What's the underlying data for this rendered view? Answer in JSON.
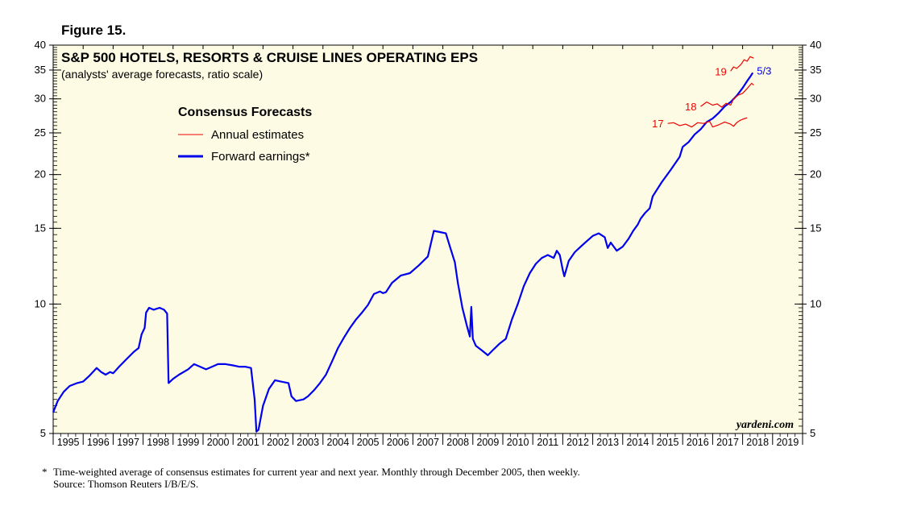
{
  "figure_label": "Figure 15.",
  "footnote": {
    "marker": "*",
    "line1": "Time-weighted average of consensus estimates for current year and next year. Monthly through December 2005, then weekly.",
    "line2": "Source: Thomson Reuters I/B/E/S."
  },
  "watermark": "yardeni.com",
  "colors": {
    "background": "#fdfbe3",
    "forward": "#0000ee",
    "annual": "#ee0000",
    "axis": "#000000"
  },
  "chart_data": {
    "type": "line",
    "title": "S&P 500 HOTELS, RESORTS & CRUISE LINES OPERATING EPS",
    "subtitle": "(analysts' average forecasts, ratio scale)",
    "legend": {
      "title": "Consensus Forecasts",
      "items": [
        {
          "label": "Annual estimates",
          "series": "annual"
        },
        {
          "label": "Forward earnings*",
          "series": "forward"
        }
      ]
    },
    "y_scale": "log",
    "ylim": [
      5,
      40
    ],
    "y_ticks": [
      5,
      10,
      15,
      20,
      25,
      30,
      35,
      40
    ],
    "xlim": [
      1995,
      2020
    ],
    "x_ticks": [
      "1995",
      "1996",
      "1997",
      "1998",
      "1999",
      "2000",
      "2001",
      "2002",
      "2003",
      "2004",
      "2005",
      "2006",
      "2007",
      "2008",
      "2009",
      "2010",
      "2011",
      "2012",
      "2013",
      "2014",
      "2015",
      "2016",
      "2017",
      "2018",
      "2019"
    ],
    "last_value_label": "5/3",
    "series": [
      {
        "name": "Forward earnings",
        "id": "forward",
        "x": [
          1995.0,
          1995.15,
          1995.35,
          1995.55,
          1995.8,
          1996.0,
          1996.2,
          1996.45,
          1996.6,
          1996.75,
          1996.9,
          1997.0,
          1997.2,
          1997.45,
          1997.7,
          1997.85,
          1997.95,
          1998.05,
          1998.1,
          1998.2,
          1998.35,
          1998.55,
          1998.7,
          1998.8,
          1998.85,
          1999.0,
          1999.2,
          1999.5,
          1999.7,
          1999.9,
          2000.1,
          2000.3,
          2000.5,
          2000.75,
          2001.0,
          2001.2,
          2001.4,
          2001.6,
          2001.72,
          2001.78,
          2001.85,
          2002.0,
          2002.2,
          2002.4,
          2002.6,
          2002.85,
          2002.95,
          2003.1,
          2003.35,
          2003.5,
          2003.7,
          2003.9,
          2004.1,
          2004.3,
          2004.5,
          2004.7,
          2004.9,
          2005.1,
          2005.3,
          2005.5,
          2005.7,
          2005.9,
          2006.0,
          2006.1,
          2006.3,
          2006.6,
          2006.9,
          2007.2,
          2007.35,
          2007.5,
          2007.7,
          2007.9,
          2008.1,
          2008.25,
          2008.4,
          2008.5,
          2008.65,
          2008.8,
          2008.9,
          2008.95,
          2009.0,
          2009.1,
          2009.3,
          2009.5,
          2009.7,
          2009.9,
          2010.1,
          2010.3,
          2010.5,
          2010.7,
          2010.9,
          2011.1,
          2011.3,
          2011.5,
          2011.7,
          2011.8,
          2011.9,
          2012.0,
          2012.05,
          2012.2,
          2012.4,
          2012.6,
          2012.8,
          2013.0,
          2013.2,
          2013.4,
          2013.5,
          2013.6,
          2013.8,
          2014.0,
          2014.2,
          2014.35,
          2014.5,
          2014.6,
          2014.75,
          2014.9,
          2015.0,
          2015.3,
          2015.6,
          2015.9,
          2016.0,
          2016.2,
          2016.4,
          2016.6,
          2016.8,
          2017.0,
          2017.2,
          2017.4,
          2017.6,
          2017.8,
          2018.0,
          2018.15,
          2018.28,
          2018.34
        ],
        "values": [
          5.6,
          5.95,
          6.25,
          6.45,
          6.55,
          6.6,
          6.8,
          7.1,
          6.95,
          6.85,
          6.95,
          6.9,
          7.15,
          7.45,
          7.75,
          7.9,
          8.5,
          8.8,
          9.55,
          9.8,
          9.7,
          9.8,
          9.7,
          9.5,
          6.55,
          6.7,
          6.85,
          7.05,
          7.25,
          7.15,
          7.05,
          7.15,
          7.25,
          7.25,
          7.2,
          7.15,
          7.15,
          7.1,
          6.0,
          5.05,
          5.1,
          5.8,
          6.35,
          6.65,
          6.6,
          6.55,
          6.1,
          5.95,
          6.0,
          6.1,
          6.3,
          6.55,
          6.85,
          7.35,
          7.9,
          8.35,
          8.8,
          9.2,
          9.55,
          9.95,
          10.55,
          10.7,
          10.6,
          10.65,
          11.2,
          11.65,
          11.8,
          12.3,
          12.6,
          12.9,
          14.8,
          14.7,
          14.6,
          13.5,
          12.5,
          11.2,
          9.8,
          8.9,
          8.4,
          9.85,
          8.3,
          8.0,
          7.8,
          7.6,
          7.85,
          8.1,
          8.3,
          9.2,
          10.0,
          11.0,
          11.8,
          12.4,
          12.8,
          13.0,
          12.8,
          13.3,
          13.0,
          12.0,
          11.6,
          12.6,
          13.2,
          13.6,
          14.0,
          14.4,
          14.6,
          14.3,
          13.5,
          13.9,
          13.3,
          13.6,
          14.2,
          14.8,
          15.3,
          15.8,
          16.3,
          16.7,
          17.8,
          19.2,
          20.5,
          22.0,
          23.2,
          23.8,
          24.8,
          25.5,
          26.5,
          27.0,
          27.8,
          28.8,
          29.5,
          30.5,
          31.8,
          33.0,
          34.0,
          34.5
        ]
      },
      {
        "name": "2017 annual estimate",
        "id": "annual17",
        "label": "17",
        "x": [
          2015.5,
          2015.7,
          2015.9,
          2016.1,
          2016.3,
          2016.5,
          2016.7,
          2016.9,
          2017.0,
          2017.2,
          2017.4,
          2017.6,
          2017.7,
          2017.8,
          2017.9,
          2018.0,
          2018.15
        ],
        "values": [
          26.3,
          26.4,
          26.0,
          26.2,
          25.8,
          26.4,
          26.3,
          26.6,
          25.8,
          26.1,
          26.5,
          26.2,
          25.9,
          26.4,
          26.7,
          26.9,
          27.1
        ]
      },
      {
        "name": "2018 annual estimate",
        "id": "annual18",
        "label": "18",
        "x": [
          2016.6,
          2016.8,
          2017.0,
          2017.15,
          2017.3,
          2017.45,
          2017.6,
          2017.7,
          2017.85,
          2018.0,
          2018.15,
          2018.3,
          2018.37
        ],
        "values": [
          28.8,
          29.5,
          29.0,
          29.2,
          28.7,
          29.3,
          29.0,
          30.0,
          30.6,
          30.9,
          31.7,
          32.6,
          32.3
        ]
      },
      {
        "name": "2019 annual estimate",
        "id": "annual19",
        "label": "19",
        "x": [
          2017.6,
          2017.7,
          2017.8,
          2017.95,
          2018.05,
          2018.15,
          2018.25,
          2018.37
        ],
        "values": [
          34.8,
          35.6,
          35.3,
          36.1,
          37.0,
          36.7,
          37.6,
          37.3
        ]
      }
    ]
  }
}
